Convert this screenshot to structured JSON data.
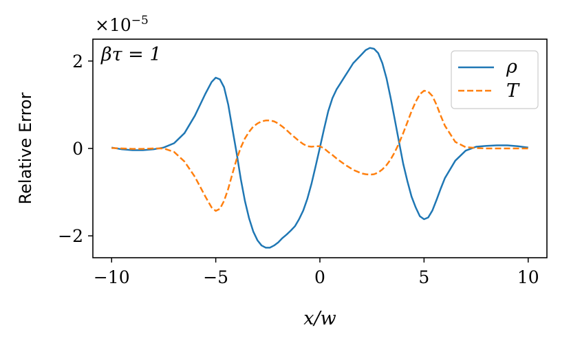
{
  "chart_data": {
    "type": "line",
    "xlabel": "x/w",
    "ylabel": "Relative Error",
    "xlim": [
      -10.9,
      10.9
    ],
    "ylim": [
      -2.5,
      2.5
    ],
    "y_multiplier": "×10",
    "y_multiplier_exponent": "−5",
    "annotation": "βτ = 1",
    "legend_position": "top-right",
    "grid": false,
    "x_ticks": [
      {
        "value": -10,
        "label": "−10"
      },
      {
        "value": -5,
        "label": "−5"
      },
      {
        "value": 0,
        "label": "0"
      },
      {
        "value": 5,
        "label": "5"
      },
      {
        "value": 10,
        "label": "10"
      }
    ],
    "y_ticks": [
      {
        "value": -2,
        "label": "−2"
      },
      {
        "value": 0,
        "label": "0"
      },
      {
        "value": 2,
        "label": "2"
      }
    ],
    "series": [
      {
        "name": "ρ",
        "color": "#1f77b4",
        "dash": "solid",
        "points": [
          [
            -10,
            0.02
          ],
          [
            -9.5,
            -0.02
          ],
          [
            -9,
            -0.04
          ],
          [
            -8.5,
            -0.04
          ],
          [
            -8,
            -0.02
          ],
          [
            -7.5,
            0.02
          ],
          [
            -7,
            0.12
          ],
          [
            -6.5,
            0.35
          ],
          [
            -6,
            0.75
          ],
          [
            -5.5,
            1.25
          ],
          [
            -5.2,
            1.52
          ],
          [
            -5,
            1.62
          ],
          [
            -4.8,
            1.58
          ],
          [
            -4.6,
            1.4
          ],
          [
            -4.4,
            1.0
          ],
          [
            -4.2,
            0.45
          ],
          [
            -4,
            -0.1
          ],
          [
            -3.8,
            -0.7
          ],
          [
            -3.6,
            -1.2
          ],
          [
            -3.4,
            -1.6
          ],
          [
            -3.2,
            -1.9
          ],
          [
            -3,
            -2.1
          ],
          [
            -2.8,
            -2.22
          ],
          [
            -2.6,
            -2.27
          ],
          [
            -2.4,
            -2.27
          ],
          [
            -2.2,
            -2.22
          ],
          [
            -2,
            -2.15
          ],
          [
            -1.8,
            -2.05
          ],
          [
            -1.6,
            -1.97
          ],
          [
            -1.4,
            -1.88
          ],
          [
            -1.2,
            -1.78
          ],
          [
            -1,
            -1.62
          ],
          [
            -0.8,
            -1.42
          ],
          [
            -0.6,
            -1.15
          ],
          [
            -0.4,
            -0.8
          ],
          [
            -0.2,
            -0.4
          ],
          [
            0,
            0.02
          ],
          [
            0.2,
            0.45
          ],
          [
            0.4,
            0.85
          ],
          [
            0.6,
            1.15
          ],
          [
            0.8,
            1.35
          ],
          [
            1,
            1.5
          ],
          [
            1.2,
            1.65
          ],
          [
            1.4,
            1.8
          ],
          [
            1.6,
            1.95
          ],
          [
            1.8,
            2.05
          ],
          [
            2,
            2.15
          ],
          [
            2.2,
            2.25
          ],
          [
            2.4,
            2.3
          ],
          [
            2.6,
            2.28
          ],
          [
            2.8,
            2.18
          ],
          [
            3,
            1.95
          ],
          [
            3.2,
            1.6
          ],
          [
            3.4,
            1.15
          ],
          [
            3.6,
            0.65
          ],
          [
            3.8,
            0.15
          ],
          [
            4,
            -0.35
          ],
          [
            4.2,
            -0.75
          ],
          [
            4.4,
            -1.1
          ],
          [
            4.6,
            -1.35
          ],
          [
            4.8,
            -1.55
          ],
          [
            5,
            -1.62
          ],
          [
            5.2,
            -1.58
          ],
          [
            5.4,
            -1.42
          ],
          [
            5.6,
            -1.18
          ],
          [
            5.8,
            -0.92
          ],
          [
            6,
            -0.68
          ],
          [
            6.5,
            -0.28
          ],
          [
            7,
            -0.05
          ],
          [
            7.5,
            0.04
          ],
          [
            8,
            0.06
          ],
          [
            8.5,
            0.07
          ],
          [
            9,
            0.07
          ],
          [
            9.5,
            0.05
          ],
          [
            10,
            0.02
          ]
        ]
      },
      {
        "name": "T",
        "color": "#ff7f0e",
        "dash": "dashed",
        "points": [
          [
            -10,
            0.01
          ],
          [
            -9.5,
            0.0
          ],
          [
            -9,
            -0.01
          ],
          [
            -8.5,
            -0.01
          ],
          [
            -8,
            0.0
          ],
          [
            -7.5,
            0.0
          ],
          [
            -7,
            -0.08
          ],
          [
            -6.5,
            -0.3
          ],
          [
            -6,
            -0.65
          ],
          [
            -5.5,
            -1.1
          ],
          [
            -5.2,
            -1.35
          ],
          [
            -5,
            -1.43
          ],
          [
            -4.8,
            -1.38
          ],
          [
            -4.6,
            -1.2
          ],
          [
            -4.4,
            -0.92
          ],
          [
            -4.2,
            -0.58
          ],
          [
            -4,
            -0.25
          ],
          [
            -3.8,
            0.02
          ],
          [
            -3.6,
            0.23
          ],
          [
            -3.4,
            0.38
          ],
          [
            -3.2,
            0.5
          ],
          [
            -3,
            0.57
          ],
          [
            -2.8,
            0.62
          ],
          [
            -2.6,
            0.64
          ],
          [
            -2.4,
            0.64
          ],
          [
            -2.2,
            0.62
          ],
          [
            -2,
            0.57
          ],
          [
            -1.8,
            0.5
          ],
          [
            -1.6,
            0.42
          ],
          [
            -1.4,
            0.33
          ],
          [
            -1.2,
            0.25
          ],
          [
            -1,
            0.17
          ],
          [
            -0.8,
            0.1
          ],
          [
            -0.6,
            0.05
          ],
          [
            -0.4,
            0.04
          ],
          [
            -0.2,
            0.05
          ],
          [
            0,
            0.05
          ],
          [
            0.2,
            0.0
          ],
          [
            0.4,
            -0.08
          ],
          [
            0.6,
            -0.15
          ],
          [
            0.8,
            -0.23
          ],
          [
            1,
            -0.3
          ],
          [
            1.2,
            -0.37
          ],
          [
            1.4,
            -0.43
          ],
          [
            1.6,
            -0.49
          ],
          [
            1.8,
            -0.53
          ],
          [
            2,
            -0.57
          ],
          [
            2.2,
            -0.59
          ],
          [
            2.4,
            -0.6
          ],
          [
            2.6,
            -0.59
          ],
          [
            2.8,
            -0.55
          ],
          [
            3,
            -0.48
          ],
          [
            3.2,
            -0.38
          ],
          [
            3.4,
            -0.25
          ],
          [
            3.6,
            -0.08
          ],
          [
            3.8,
            0.12
          ],
          [
            4,
            0.35
          ],
          [
            4.2,
            0.6
          ],
          [
            4.4,
            0.85
          ],
          [
            4.6,
            1.07
          ],
          [
            4.8,
            1.24
          ],
          [
            5,
            1.32
          ],
          [
            5.2,
            1.3
          ],
          [
            5.4,
            1.2
          ],
          [
            5.6,
            1.0
          ],
          [
            5.8,
            0.75
          ],
          [
            6,
            0.52
          ],
          [
            6.5,
            0.15
          ],
          [
            7,
            0.03
          ],
          [
            7.5,
            0.01
          ],
          [
            8,
            0.0
          ],
          [
            8.5,
            0.0
          ],
          [
            9,
            0.0
          ],
          [
            9.5,
            0.0
          ],
          [
            10,
            0.0
          ]
        ]
      }
    ]
  }
}
